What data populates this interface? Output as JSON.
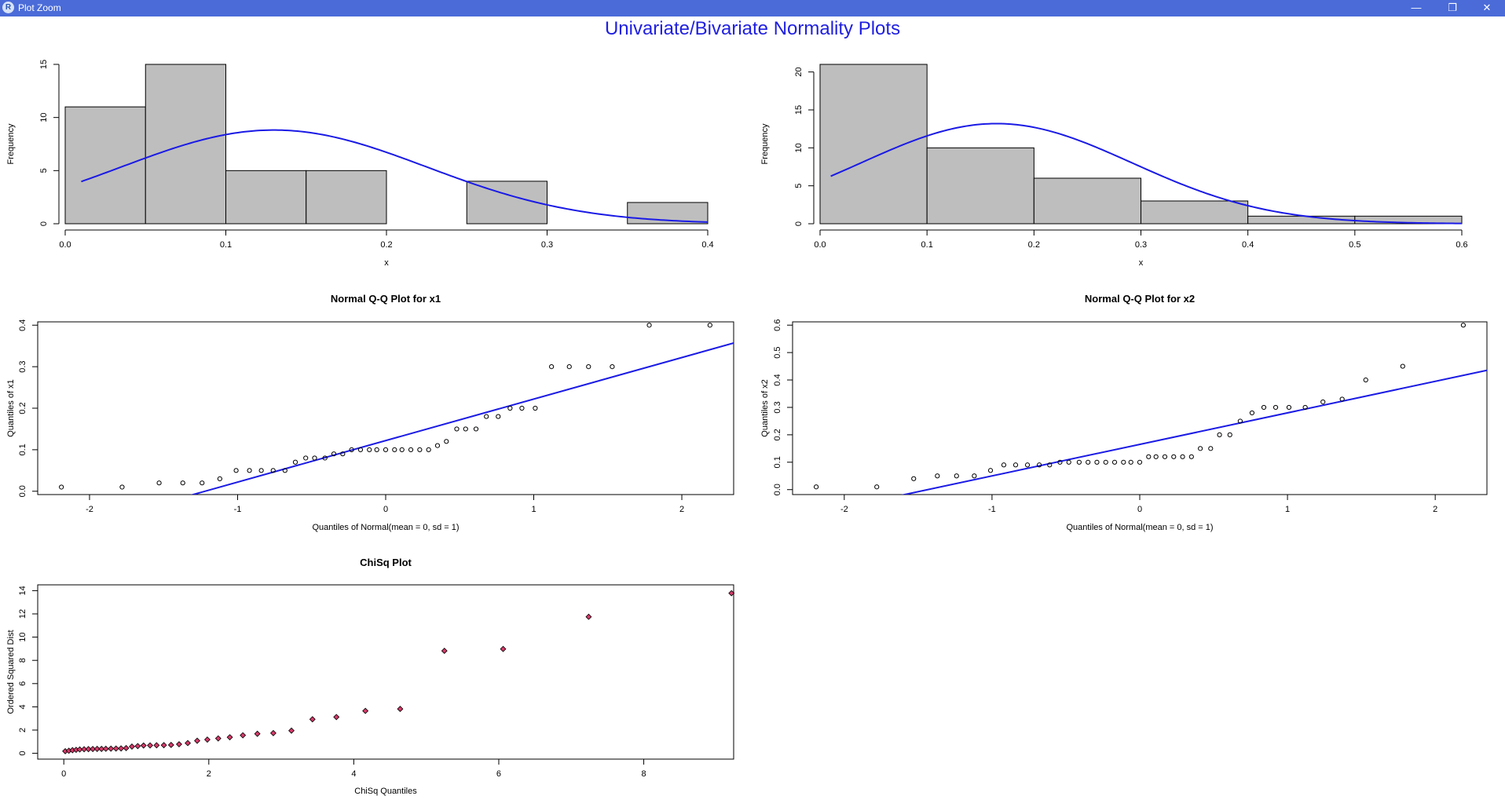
{
  "window": {
    "app_icon_letter": "R",
    "title": "Plot Zoom",
    "minimize_glyph": "—",
    "restore_glyph": "❐",
    "close_glyph": "✕"
  },
  "main_title": "Univariate/Bivariate Normality Plots",
  "colors": {
    "titlebar": "#4a6bd8",
    "main_title": "#1f1fe0",
    "bar_fill": "#bebebe",
    "curve": "#1a1ae6",
    "qq_line": "#1a1ae6",
    "chisq_point_fill": "#d63a6a"
  },
  "chart_data": [
    {
      "id": "hist-x1",
      "type": "bar",
      "title": "",
      "xlabel": "x",
      "ylabel": "Frequency",
      "bin_edges": [
        0.0,
        0.05,
        0.1,
        0.15,
        0.2,
        0.25,
        0.3,
        0.35,
        0.4
      ],
      "values": [
        11,
        15,
        5,
        5,
        0,
        4,
        0,
        2
      ],
      "xlim": [
        0,
        0.4
      ],
      "ylim": [
        0,
        15
      ],
      "xticks": [
        0.0,
        0.1,
        0.2,
        0.3,
        0.4
      ],
      "xtick_labels": [
        "0.0",
        "0.1",
        "0.2",
        "0.3",
        "0.4"
      ],
      "yticks": [
        0,
        5,
        10,
        15
      ],
      "ytick_labels": [
        "0",
        "5",
        "10",
        "15"
      ],
      "normal_curve": {
        "mean": 0.13,
        "sd": 0.095,
        "n": 42,
        "binwidth": 0.05,
        "from": 0.01,
        "to": 0.4
      }
    },
    {
      "id": "hist-x2",
      "type": "bar",
      "title": "",
      "xlabel": "x",
      "ylabel": "Frequency",
      "bin_edges": [
        0.0,
        0.1,
        0.2,
        0.3,
        0.4,
        0.5,
        0.6
      ],
      "values": [
        21,
        10,
        6,
        3,
        1,
        1
      ],
      "xlim": [
        0,
        0.6
      ],
      "ylim": [
        0,
        21
      ],
      "xticks": [
        0.0,
        0.1,
        0.2,
        0.3,
        0.4,
        0.5,
        0.6
      ],
      "xtick_labels": [
        "0.0",
        "0.1",
        "0.2",
        "0.3",
        "0.4",
        "0.5",
        "0.6"
      ],
      "yticks": [
        0,
        5,
        10,
        15,
        20
      ],
      "ytick_labels": [
        "0",
        "5",
        "10",
        "15",
        "20"
      ],
      "normal_curve": {
        "mean": 0.165,
        "sd": 0.127,
        "n": 42,
        "binwidth": 0.1,
        "from": 0.01,
        "to": 0.6
      }
    },
    {
      "id": "qq-x1",
      "type": "scatter",
      "title": "Normal Q-Q Plot for x1",
      "xlabel": "Quantiles of Normal(mean = 0, sd = 1)",
      "ylabel": "Quantiles of x1",
      "xlim": [
        -2.35,
        2.35
      ],
      "ylim": [
        -0.008,
        0.408
      ],
      "xticks": [
        -2,
        -1,
        0,
        1,
        2
      ],
      "xtick_labels": [
        "-2",
        "-1",
        "0",
        "1",
        "2"
      ],
      "yticks": [
        0.0,
        0.1,
        0.2,
        0.3,
        0.4
      ],
      "ytick_labels": [
        "0.0",
        "0.1",
        "0.2",
        "0.3",
        "0.4"
      ],
      "points": [
        [
          -2.19,
          0.01
        ],
        [
          -1.78,
          0.01
        ],
        [
          -1.53,
          0.02
        ],
        [
          -1.37,
          0.02
        ],
        [
          -1.24,
          0.02
        ],
        [
          -1.12,
          0.03
        ],
        [
          -1.01,
          0.05
        ],
        [
          -0.92,
          0.05
        ],
        [
          -0.84,
          0.05
        ],
        [
          -0.76,
          0.05
        ],
        [
          -0.68,
          0.05
        ],
        [
          -0.61,
          0.07
        ],
        [
          -0.54,
          0.08
        ],
        [
          -0.48,
          0.08
        ],
        [
          -0.41,
          0.08
        ],
        [
          -0.35,
          0.09
        ],
        [
          -0.29,
          0.09
        ],
        [
          -0.23,
          0.1
        ],
        [
          -0.17,
          0.1
        ],
        [
          -0.11,
          0.1
        ],
        [
          -0.06,
          0.1
        ],
        [
          0.0,
          0.1
        ],
        [
          0.06,
          0.1
        ],
        [
          0.11,
          0.1
        ],
        [
          0.17,
          0.1
        ],
        [
          0.23,
          0.1
        ],
        [
          0.29,
          0.1
        ],
        [
          0.35,
          0.11
        ],
        [
          0.41,
          0.12
        ],
        [
          0.48,
          0.15
        ],
        [
          0.54,
          0.15
        ],
        [
          0.61,
          0.15
        ],
        [
          0.68,
          0.18
        ],
        [
          0.76,
          0.18
        ],
        [
          0.84,
          0.2
        ],
        [
          0.92,
          0.2
        ],
        [
          1.01,
          0.2
        ],
        [
          1.12,
          0.3
        ],
        [
          1.24,
          0.3
        ],
        [
          1.37,
          0.3
        ],
        [
          1.53,
          0.3
        ],
        [
          1.78,
          0.4
        ],
        [
          2.19,
          0.4
        ]
      ],
      "line": {
        "intercept": 0.122,
        "slope": 0.1
      }
    },
    {
      "id": "qq-x2",
      "type": "scatter",
      "title": "Normal Q-Q Plot for x2",
      "xlabel": "Quantiles of Normal(mean = 0, sd = 1)",
      "ylabel": "Quantiles of x2",
      "xlim": [
        -2.35,
        2.35
      ],
      "ylim": [
        -0.018,
        0.612
      ],
      "xticks": [
        -2,
        -1,
        0,
        1,
        2
      ],
      "xtick_labels": [
        "-2",
        "-1",
        "0",
        "1",
        "2"
      ],
      "yticks": [
        0.0,
        0.1,
        0.2,
        0.3,
        0.4,
        0.5,
        0.6
      ],
      "ytick_labels": [
        "0.0",
        "0.1",
        "0.2",
        "0.3",
        "0.4",
        "0.5",
        "0.6"
      ],
      "points": [
        [
          -2.19,
          0.01
        ],
        [
          -1.78,
          0.01
        ],
        [
          -1.53,
          0.04
        ],
        [
          -1.37,
          0.05
        ],
        [
          -1.24,
          0.05
        ],
        [
          -1.12,
          0.05
        ],
        [
          -1.01,
          0.07
        ],
        [
          -0.92,
          0.09
        ],
        [
          -0.84,
          0.09
        ],
        [
          -0.76,
          0.09
        ],
        [
          -0.68,
          0.09
        ],
        [
          -0.61,
          0.09
        ],
        [
          -0.54,
          0.1
        ],
        [
          -0.48,
          0.1
        ],
        [
          -0.41,
          0.1
        ],
        [
          -0.35,
          0.1
        ],
        [
          -0.29,
          0.1
        ],
        [
          -0.23,
          0.1
        ],
        [
          -0.17,
          0.1
        ],
        [
          -0.11,
          0.1
        ],
        [
          -0.06,
          0.1
        ],
        [
          0.0,
          0.1
        ],
        [
          0.06,
          0.12
        ],
        [
          0.11,
          0.12
        ],
        [
          0.17,
          0.12
        ],
        [
          0.23,
          0.12
        ],
        [
          0.29,
          0.12
        ],
        [
          0.35,
          0.12
        ],
        [
          0.41,
          0.15
        ],
        [
          0.48,
          0.15
        ],
        [
          0.54,
          0.2
        ],
        [
          0.61,
          0.2
        ],
        [
          0.68,
          0.25
        ],
        [
          0.76,
          0.28
        ],
        [
          0.84,
          0.3
        ],
        [
          0.92,
          0.3
        ],
        [
          1.01,
          0.3
        ],
        [
          1.12,
          0.3
        ],
        [
          1.24,
          0.32
        ],
        [
          1.37,
          0.33
        ],
        [
          1.53,
          0.4
        ],
        [
          1.78,
          0.45
        ],
        [
          2.19,
          0.6
        ]
      ],
      "line": {
        "intercept": 0.165,
        "slope": 0.115
      }
    },
    {
      "id": "chisq",
      "type": "scatter",
      "title": "ChiSq Plot",
      "xlabel": "ChiSq Quantiles",
      "ylabel": "Ordered Squared Dist",
      "xlim": [
        -0.36,
        9.24
      ],
      "ylim": [
        -0.5,
        14.5
      ],
      "xticks": [
        0,
        2,
        4,
        6,
        8
      ],
      "xtick_labels": [
        "0",
        "2",
        "4",
        "6",
        "8"
      ],
      "yticks": [
        0,
        2,
        4,
        6,
        8,
        10,
        12,
        14
      ],
      "ytick_labels": [
        "0",
        "2",
        "4",
        "6",
        "8",
        "10",
        "12",
        "14"
      ],
      "points": [
        [
          0.02,
          0.18
        ],
        [
          0.07,
          0.22
        ],
        [
          0.12,
          0.27
        ],
        [
          0.17,
          0.3
        ],
        [
          0.22,
          0.33
        ],
        [
          0.28,
          0.35
        ],
        [
          0.34,
          0.36
        ],
        [
          0.4,
          0.37
        ],
        [
          0.46,
          0.38
        ],
        [
          0.52,
          0.38
        ],
        [
          0.58,
          0.39
        ],
        [
          0.65,
          0.4
        ],
        [
          0.72,
          0.41
        ],
        [
          0.79,
          0.42
        ],
        [
          0.86,
          0.45
        ],
        [
          0.94,
          0.58
        ],
        [
          1.02,
          0.62
        ],
        [
          1.1,
          0.67
        ],
        [
          1.19,
          0.68
        ],
        [
          1.28,
          0.69
        ],
        [
          1.38,
          0.7
        ],
        [
          1.48,
          0.72
        ],
        [
          1.59,
          0.78
        ],
        [
          1.71,
          0.88
        ],
        [
          1.84,
          1.08
        ],
        [
          1.98,
          1.18
        ],
        [
          2.13,
          1.28
        ],
        [
          2.29,
          1.38
        ],
        [
          2.47,
          1.55
        ],
        [
          2.67,
          1.68
        ],
        [
          2.89,
          1.74
        ],
        [
          3.14,
          1.95
        ],
        [
          3.43,
          2.93
        ],
        [
          3.76,
          3.12
        ],
        [
          4.16,
          3.65
        ],
        [
          4.64,
          3.82
        ],
        [
          5.25,
          8.82
        ],
        [
          6.06,
          8.98
        ],
        [
          7.24,
          11.75
        ],
        [
          9.21,
          13.78
        ]
      ]
    }
  ]
}
